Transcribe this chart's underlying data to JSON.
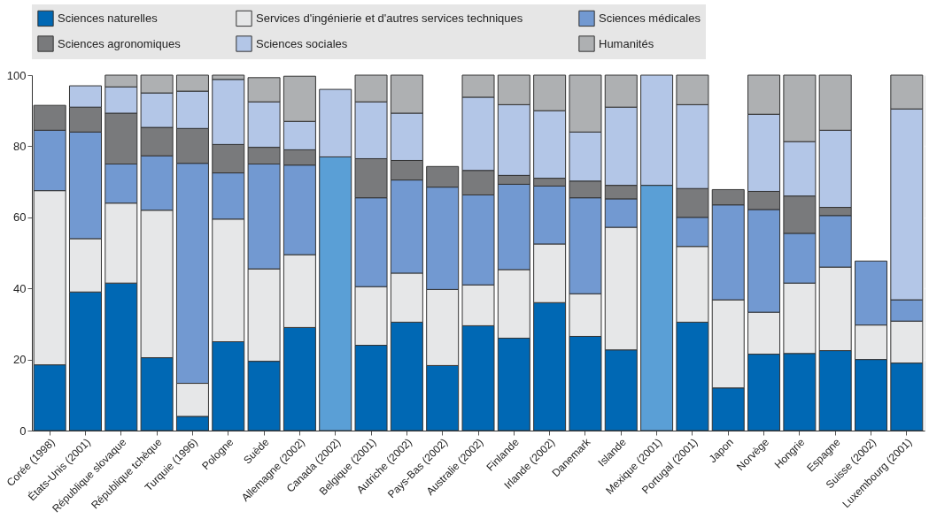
{
  "chart_data": {
    "type": "bar",
    "stacked": true,
    "categories": [
      "Corée (1998)",
      "États-Unis (2001)",
      "République slovaque",
      "République tchèque",
      "Turquie (1996)",
      "Pologne",
      "Suède",
      "Allemagne (2002)",
      "Canada (2002)",
      "Belgique (2001)",
      "Autriche (2002)",
      "Pays-Bas (2002)",
      "Australie (2002)",
      "Finlande",
      "Irlande (2002)",
      "Danemark",
      "Islande",
      "Mexique (2001)",
      "Portugal (2001)",
      "Japon",
      "Norvège",
      "Hongrie",
      "Espagne",
      "Suisse (2002)",
      "Luxembourg (2001)"
    ],
    "series": [
      {
        "color": "#5a9fd6",
        "values": [
          null,
          null,
          null,
          null,
          null,
          null,
          null,
          null,
          77,
          null,
          null,
          null,
          null,
          null,
          null,
          null,
          null,
          69,
          null,
          null,
          null,
          null,
          null,
          null,
          null
        ]
      },
      {
        "name": "Sciences naturelles",
        "color": "#0068b4",
        "values": [
          18.5,
          39,
          41.5,
          20.5,
          4,
          25,
          19.5,
          29,
          null,
          24,
          30.5,
          18.3,
          29.5,
          26,
          36,
          26.5,
          22.7,
          null,
          30.5,
          12,
          21.5,
          21.7,
          22.5,
          20,
          19
        ]
      },
      {
        "name": "Services d'ingénierie et d'autres services techniques",
        "color": "#e6e7e8",
        "values": [
          49,
          15,
          22.5,
          41.5,
          9.3,
          34.5,
          26,
          20.5,
          null,
          16.5,
          13.8,
          21.4,
          11.5,
          19.3,
          16.5,
          12,
          34.5,
          null,
          21.3,
          24.8,
          11.8,
          19.8,
          23.5,
          9.7,
          11.8
        ]
      },
      {
        "name": "Sciences médicales",
        "color": "#7299d1",
        "values": [
          17,
          30,
          11,
          15.3,
          61.9,
          13,
          29.5,
          25.2,
          null,
          25,
          26.2,
          28.8,
          25.3,
          24,
          16.3,
          27,
          8,
          null,
          8.2,
          26.7,
          28.9,
          14,
          14.5,
          18,
          6
        ]
      },
      {
        "name": "Sciences agronomiques",
        "color": "#797a7c",
        "values": [
          7,
          7,
          14.3,
          8,
          9.8,
          8,
          4.7,
          4.3,
          null,
          11,
          5.5,
          5.8,
          6.9,
          2.5,
          2.2,
          4.7,
          3.8,
          null,
          8.1,
          4.3,
          5.1,
          10.5,
          2.3,
          null,
          null
        ]
      },
      {
        "name": "Sciences sociales",
        "color": "#b3c6e7",
        "values": [
          null,
          6,
          7.4,
          9.7,
          10.5,
          18.3,
          12.8,
          8,
          19,
          16,
          13.3,
          null,
          20.6,
          19.9,
          19,
          13.8,
          22,
          31,
          23.6,
          null,
          21.7,
          15.3,
          21.7,
          null,
          53.7
        ]
      },
      {
        "name": "Humanités",
        "color": "#aeb0b2",
        "values": [
          null,
          null,
          3.3,
          5,
          4.5,
          1.2,
          6.8,
          12.7,
          null,
          7.5,
          10.7,
          null,
          6.2,
          8.3,
          10,
          16,
          9,
          null,
          8.3,
          null,
          11,
          18.7,
          15.5,
          null,
          9.5
        ]
      }
    ],
    "ylim": [
      0,
      100
    ],
    "yticks": [
      0,
      20,
      40,
      60,
      80,
      100
    ],
    "grid": "y",
    "legend": "top"
  }
}
